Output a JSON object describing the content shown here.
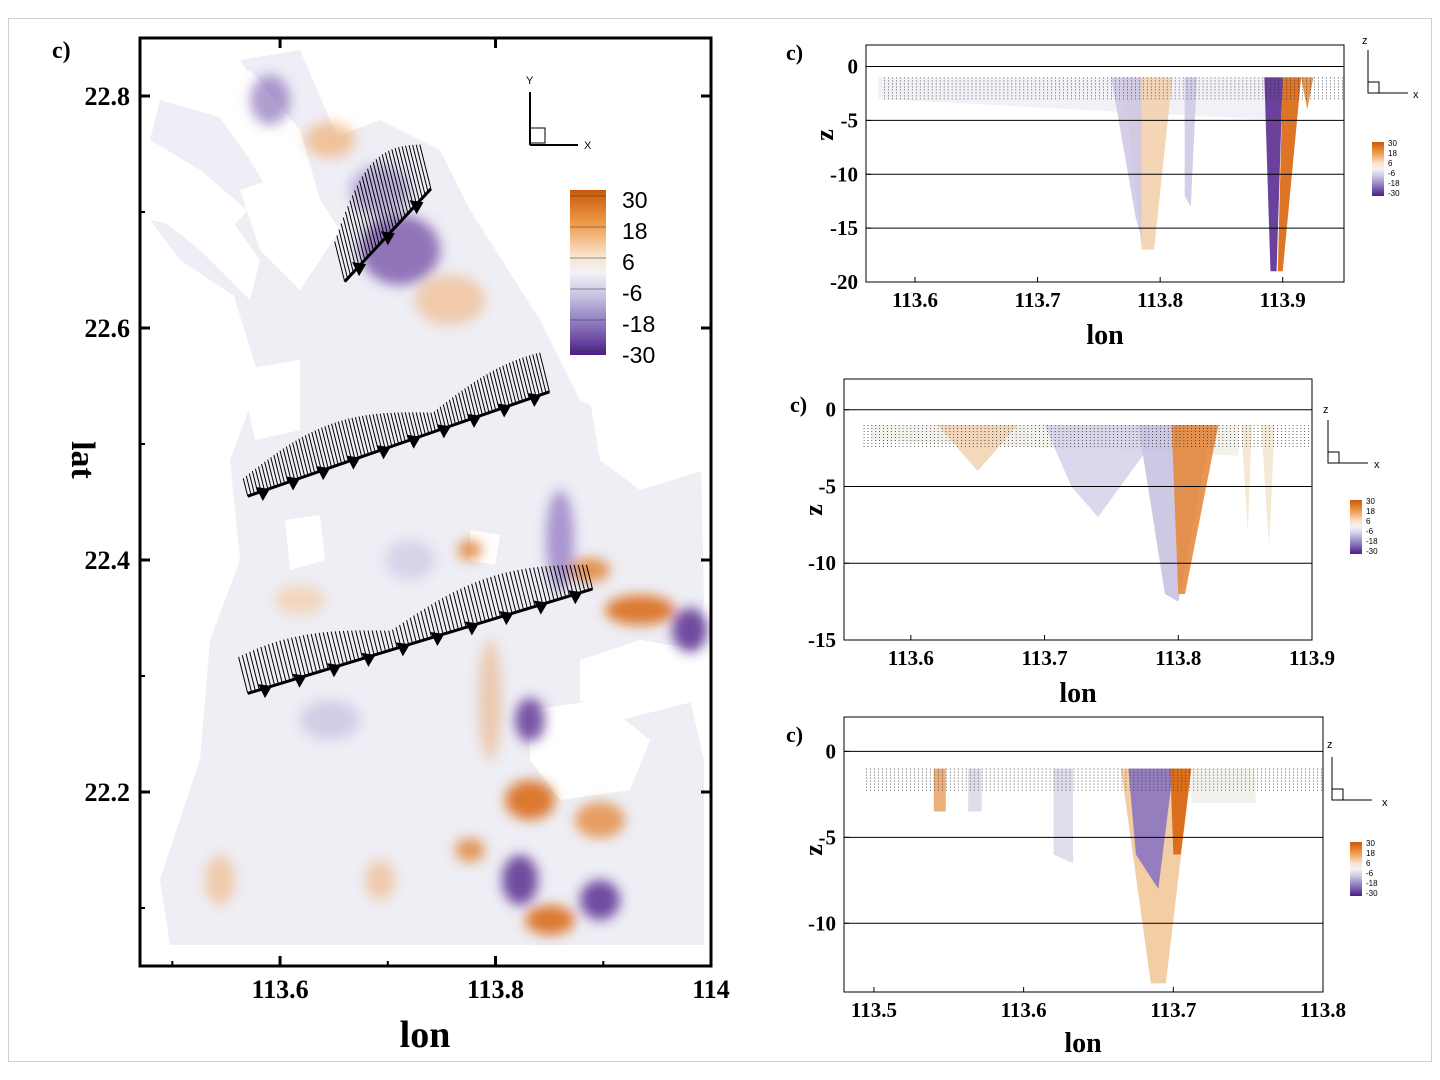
{
  "colors": {
    "orange_strong": "#d9650e",
    "orange_light": "#f5c89a",
    "neutral": "#eeeef4",
    "purple_light": "#b9b2d8",
    "purple_strong": "#5a2d91",
    "axis": "#000000"
  },
  "chart_data": [
    {
      "type": "heatmap",
      "panel_label": "c)",
      "xlabel": "lon",
      "ylabel": "lat",
      "xlim": [
        113.47,
        114.0
      ],
      "ylim": [
        22.05,
        22.85
      ],
      "x_ticks": [
        "113.6",
        "113.8",
        "114"
      ],
      "y_ticks": [
        "22.8",
        "22.6",
        "22.4",
        "22.2"
      ],
      "x_tick_values": [
        113.6,
        113.8,
        114.0
      ],
      "y_tick_values": [
        22.8,
        22.6,
        22.4,
        22.2
      ],
      "triad": {
        "v": "Y",
        "h": "X"
      },
      "legend": {
        "values": [
          "30",
          "18",
          "6",
          "-6",
          "-18",
          "-30"
        ],
        "placement": "top-right"
      },
      "sections": [
        {
          "from": [
            113.57,
            22.455
          ],
          "to": [
            113.85,
            22.545
          ]
        },
        {
          "from": [
            113.57,
            22.285
          ],
          "to": [
            113.89,
            22.375
          ]
        },
        {
          "from": [
            113.66,
            22.64
          ],
          "to": [
            113.74,
            22.72
          ]
        }
      ]
    },
    {
      "type": "heatmap",
      "panel_label": "c)",
      "xlabel": "lon",
      "ylabel": "z",
      "xlim": [
        113.56,
        113.95
      ],
      "ylim": [
        -20,
        2
      ],
      "x_ticks": [
        "113.6",
        "113.7",
        "113.8",
        "113.9"
      ],
      "y_ticks": [
        "0",
        "-5",
        "-10",
        "-15",
        "-20"
      ],
      "x_tick_values": [
        113.6,
        113.7,
        113.8,
        113.9
      ],
      "y_tick_values": [
        0,
        -5,
        -10,
        -15,
        -20
      ],
      "triad": {
        "v": "z",
        "h": "x"
      },
      "legend": {
        "values": [
          "30",
          "18",
          "6",
          "-6",
          "-18",
          "-30"
        ],
        "placement": "right"
      }
    },
    {
      "type": "heatmap",
      "panel_label": "c)",
      "xlabel": "lon",
      "ylabel": "z",
      "xlim": [
        113.55,
        113.9
      ],
      "ylim": [
        -15,
        2
      ],
      "x_ticks": [
        "113.6",
        "113.7",
        "113.8",
        "113.9"
      ],
      "y_ticks": [
        "0",
        "-5",
        "-10",
        "-15"
      ],
      "x_tick_values": [
        113.6,
        113.7,
        113.8,
        113.9
      ],
      "y_tick_values": [
        0,
        -5,
        -10,
        -15
      ],
      "triad": {
        "v": "z",
        "h": "x"
      },
      "legend": {
        "values": [
          "30",
          "18",
          "6",
          "-6",
          "-18",
          "-30"
        ],
        "placement": "right"
      }
    },
    {
      "type": "heatmap",
      "panel_label": "c)",
      "xlabel": "lon",
      "ylabel": "z",
      "xlim": [
        113.48,
        113.8
      ],
      "ylim": [
        -14,
        2
      ],
      "x_ticks": [
        "113.5",
        "113.6",
        "113.7",
        "113.8"
      ],
      "y_ticks": [
        "0",
        "-5",
        "-10"
      ],
      "x_tick_values": [
        113.5,
        113.6,
        113.7,
        113.8
      ],
      "y_tick_values": [
        0,
        -5,
        -10
      ],
      "triad": {
        "v": "z",
        "h": "x"
      },
      "legend": {
        "values": [
          "30",
          "18",
          "6",
          "-6",
          "-18",
          "-30"
        ],
        "placement": "right"
      }
    }
  ]
}
